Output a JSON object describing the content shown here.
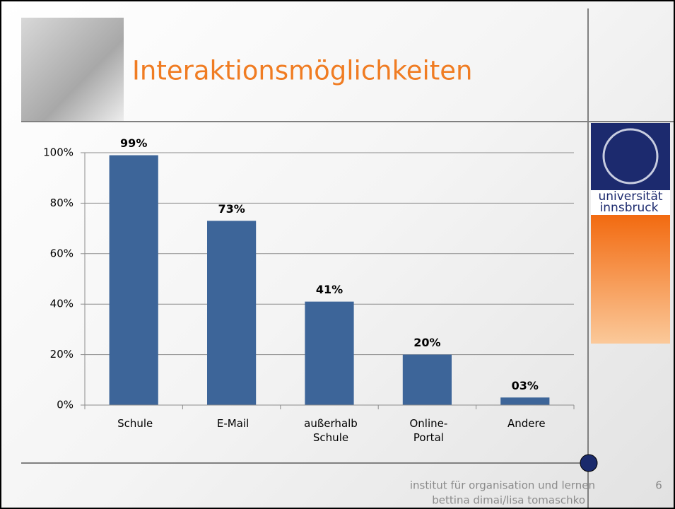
{
  "slide": {
    "title": "Interaktionsmöglichkeiten",
    "logo_lines": [
      "universität",
      "innsbruck"
    ],
    "footer_lines": [
      "institut für organisation und lernen",
      "bettina dimai/lisa tomaschko"
    ],
    "page_number": "6"
  },
  "chart_data": {
    "type": "bar",
    "categories": [
      "Schule",
      "E-Mail",
      "außerhalb\nSchule",
      "Online-\nPortal",
      "Andere"
    ],
    "values": [
      99,
      73,
      41,
      20,
      3
    ],
    "value_labels": [
      "99%",
      "73%",
      "41%",
      "20%",
      "03%"
    ],
    "color": "#3d6599",
    "ylim": [
      0,
      100
    ],
    "yticks": [
      {
        "value": 0,
        "label": "0%"
      },
      {
        "value": 20,
        "label": "20%"
      },
      {
        "value": 40,
        "label": "40%"
      },
      {
        "value": 60,
        "label": "60%"
      },
      {
        "value": 80,
        "label": "80%"
      },
      {
        "value": 100,
        "label": "100%"
      }
    ],
    "grid": true
  }
}
